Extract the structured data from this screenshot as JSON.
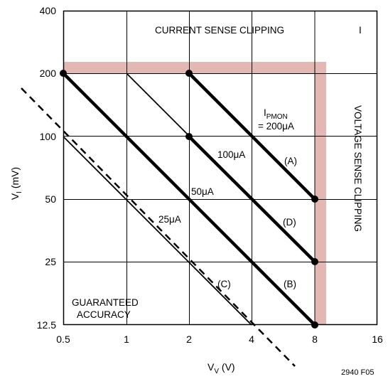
{
  "chart_data": {
    "type": "line",
    "xlabel": {
      "main": "V",
      "sub": "V",
      "unit": " (V)"
    },
    "ylabel": {
      "main": "V",
      "sub": "I",
      "unit": " (mV)"
    },
    "x_scale": "log2",
    "y_scale": "log2",
    "xlim": [
      0.5,
      16
    ],
    "ylim": [
      12.5,
      400
    ],
    "x_ticks": [
      0.5,
      1,
      2,
      4,
      8,
      16
    ],
    "x_tick_labels": [
      "0.5",
      "1",
      "2",
      "4",
      "8",
      "16"
    ],
    "y_ticks": [
      12.5,
      25,
      50,
      100,
      200,
      400
    ],
    "y_tick_labels": [
      "12.5",
      "25",
      "50",
      "100",
      "200",
      "400"
    ],
    "grid": true,
    "shaded_region": {
      "color": "#e3b8b3",
      "note": "region at V_V > 8 and V_I > 200 (clipping)",
      "x_from": 0.5,
      "x_to": 10,
      "y_from": 12.5,
      "y_to": 240
    },
    "series": [
      {
        "values_x": [
          2,
          8
        ],
        "values_y": [
          200,
          50
        ],
        "bold": true,
        "markers": true
      },
      {
        "values_x": [
          0.5,
          2,
          8
        ],
        "values_y": [
          200,
          100,
          25
        ],
        "bold": true,
        "markers": true
      },
      {
        "values_x": [
          0.5,
          8
        ],
        "values_y": [
          200,
          12.5
        ],
        "bold": true,
        "markers": true
      },
      {
        "values_x": [
          1,
          8
        ],
        "values_y": [
          200,
          25
        ],
        "bold": false,
        "markers": false
      },
      {
        "values_x": [
          0.5,
          4
        ],
        "values_y": [
          100,
          12.5
        ],
        "bold": false,
        "markers": false
      }
    ],
    "guide_line": {
      "style": "dashed",
      "x": [
        0.25,
        12
      ],
      "y": [
        200,
        4
      ]
    },
    "annotations": {
      "current_clip": "CURRENT SENSE CLIPPING",
      "voltage_clip": "VOLTAGE SENSE CLIPPING",
      "region_i": "I",
      "ipmon_main": "I",
      "ipmon_sub": "PMON",
      "ipmon_val": "= 200μA",
      "label_100": "100μA",
      "label_50": "50μA",
      "label_25": "25μA",
      "label_a": "(A)",
      "label_b": "(B)",
      "label_c": "(C)",
      "label_d": "(D)",
      "guaranteed_1": "GUARANTEED",
      "guaranteed_2": "ACCURACY"
    },
    "figure_id": "2940 F05"
  }
}
